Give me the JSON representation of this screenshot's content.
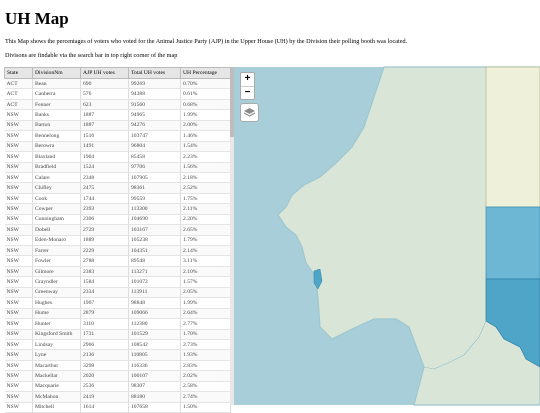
{
  "page": {
    "title": "UH Map",
    "description1": "This Map shows the percentages of voters who voted for the Animal Justice Party (AJP) in the Upper House (UH) by the Division their polling booth was located.",
    "description2": "Divisons are findable via the search bar in top right corner of the map"
  },
  "table": {
    "headers": [
      "State",
      "DivisionNm",
      "AJP UH votes",
      "Total UH votes",
      "UH Percentage"
    ],
    "rows": [
      [
        "ACT",
        "Bean",
        "690",
        "99269",
        "0.70%"
      ],
      [
        "ACT",
        "Canberra",
        "576",
        "94388",
        "0.61%"
      ],
      [
        "ACT",
        "Fenner",
        "623",
        "91560",
        "0.68%"
      ],
      [
        "NSW",
        "Banks",
        "1887",
        "94965",
        "1.99%"
      ],
      [
        "NSW",
        "Barton",
        "1887",
        "94276",
        "2.00%"
      ],
      [
        "NSW",
        "Bennelong",
        "1516",
        "103747",
        "1.46%"
      ],
      [
        "NSW",
        "Berowra",
        "1491",
        "96804",
        "1.54%"
      ],
      [
        "NSW",
        "Blaxland",
        "1904",
        "85458",
        "2.23%"
      ],
      [
        "NSW",
        "Bradfield",
        "1524",
        "97706",
        "1.56%"
      ],
      [
        "NSW",
        "Calare",
        "2348",
        "107905",
        "2.18%"
      ],
      [
        "NSW",
        "Chifley",
        "2475",
        "98361",
        "2.52%"
      ],
      [
        "NSW",
        "Cook",
        "1744",
        "99559",
        "1.75%"
      ],
      [
        "NSW",
        "Cowper",
        "2393",
        "113300",
        "2.11%"
      ],
      [
        "NSW",
        "Cunningham",
        "2306",
        "104690",
        "2.20%"
      ],
      [
        "NSW",
        "Dobell",
        "2729",
        "103167",
        "2.65%"
      ],
      [
        "NSW",
        "Eden-Monaro",
        "1889",
        "105238",
        "1.79%"
      ],
      [
        "NSW",
        "Farrer",
        "2229",
        "104351",
        "2.14%"
      ],
      [
        "NSW",
        "Fowler",
        "2788",
        "89548",
        "3.11%"
      ],
      [
        "NSW",
        "Gilmore",
        "2383",
        "113271",
        "2.10%"
      ],
      [
        "NSW",
        "Grayndler",
        "1584",
        "101072",
        "1.57%"
      ],
      [
        "NSW",
        "Greenway",
        "2334",
        "113911",
        "2.05%"
      ],
      [
        "NSW",
        "Hughes",
        "1967",
        "98848",
        "1.99%"
      ],
      [
        "NSW",
        "Hume",
        "2879",
        "109066",
        "2.64%"
      ],
      [
        "NSW",
        "Hunter",
        "3110",
        "112380",
        "2.77%"
      ],
      [
        "NSW",
        "Kingsford Smith",
        "1731",
        "101529",
        "1.70%"
      ],
      [
        "NSW",
        "Lindsay",
        "2966",
        "108542",
        "2.73%"
      ],
      [
        "NSW",
        "Lyne",
        "2136",
        "110805",
        "1.93%"
      ],
      [
        "NSW",
        "Macarthur",
        "3298",
        "116336",
        "2.83%"
      ],
      [
        "NSW",
        "Mackellar",
        "2020",
        "100107",
        "2.02%"
      ],
      [
        "NSW",
        "Macquarie",
        "2536",
        "98307",
        "2.58%"
      ],
      [
        "NSW",
        "McMahon",
        "2419",
        "88180",
        "2.74%"
      ],
      [
        "NSW",
        "Mitchell",
        "1614",
        "107658",
        "1.50%"
      ]
    ]
  },
  "map": {
    "zoom_in": "+",
    "zoom_out": "−",
    "colors": {
      "ocean": "#a8cfd9",
      "land": "#d9e5d6",
      "choropleth_dark": "#4ea5c8",
      "choropleth_mid": "#6db7d4",
      "choropleth_light": "#eef0da"
    }
  }
}
